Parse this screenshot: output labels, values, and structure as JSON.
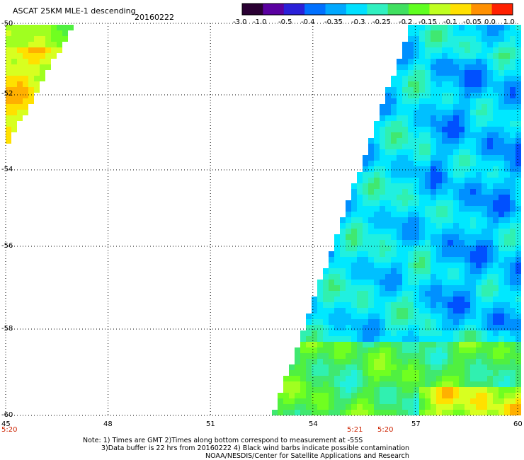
{
  "header": {
    "title": "ASCAT 25KM MLE-1 descending",
    "date": "20160222"
  },
  "colorbar": {
    "labels": [
      "-3.0",
      "-1.0",
      "-0.5",
      "-0.4",
      "-0.35",
      "-0.3",
      "-0.25",
      "-0.2",
      "-0.15",
      "-0.1",
      "-0.05",
      "0.0",
      "1.0"
    ],
    "colors": [
      "#2a0033",
      "#5a00a0",
      "#2a20d8",
      "#0070ff",
      "#00a8ff",
      "#00e0ff",
      "#30f0c0",
      "#40e060",
      "#60ff20",
      "#c0ff20",
      "#ffe000",
      "#ff9000",
      "#ff2000"
    ]
  },
  "map": {
    "lon_range": [
      45,
      60
    ],
    "lat_range": [
      -60,
      -50
    ],
    "x_ticks": [
      "45",
      "48",
      "51",
      "54",
      "57",
      "60"
    ],
    "y_ticks": [
      "-50",
      "-52",
      "-54",
      "-56",
      "-58",
      "-60"
    ],
    "grid": true
  },
  "times": [
    "5:20",
    "5:21",
    "5:20"
  ],
  "note": {
    "line1": "Note: 1) Times are GMT 2)Times along bottom correspond to measurement at -55S",
    "line2": "3)Data buffer is 22 hrs from 20160222 4) Black wind barbs indicate possible contamination",
    "line3": "NOAA/NESDIS/Center for Satellite Applications and Research"
  }
}
